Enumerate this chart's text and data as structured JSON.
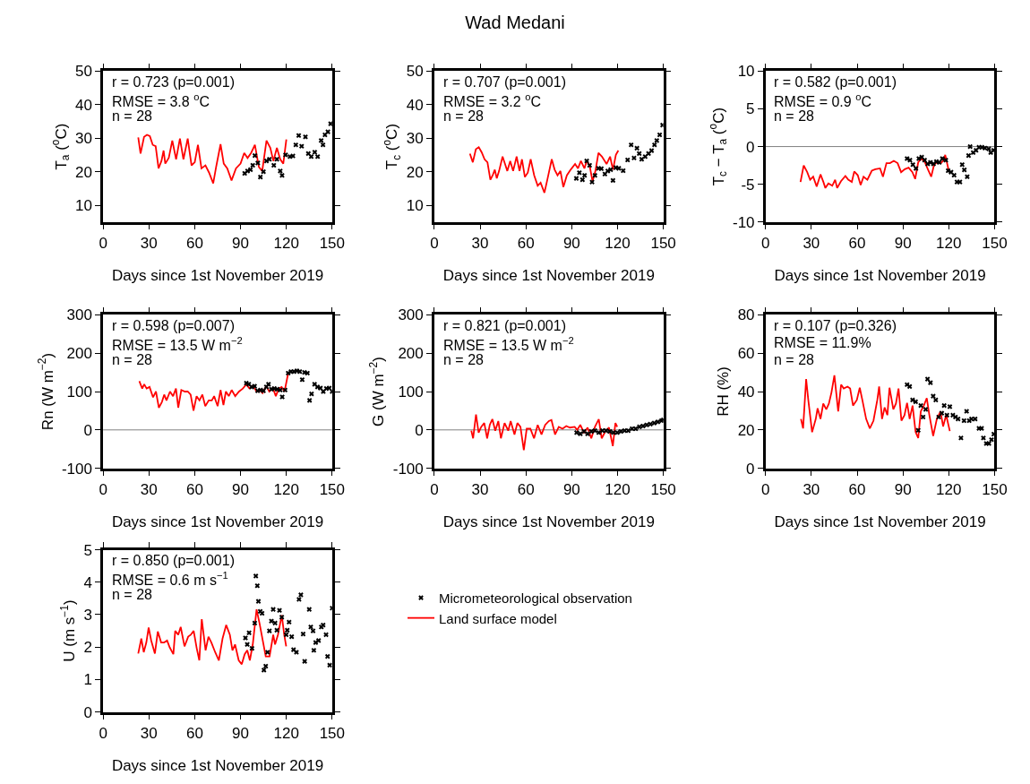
{
  "chart_data": [
    {
      "type": "line",
      "xlabel": "Days since 1st November 2019",
      "ylabel": "T$_{a}$ ($^{o}$C)",
      "xlim": [
        0,
        150
      ],
      "xticks": [
        0,
        30,
        60,
        90,
        120,
        150
      ],
      "ylim": [
        5,
        50
      ],
      "yticks": [
        10,
        20,
        30,
        40,
        50
      ],
      "grid": false,
      "annotations": [
        "r = 0.723 (p=0.001)",
        "RMSE = 3.8 $^{o}$C",
        "n = 28"
      ],
      "series": [
        {
          "type": "scatter",
          "marker": "cross",
          "color": "#000000",
          "x": [
            92.7,
            94.6,
            96.5,
            98,
            99.4,
            101.3,
            103,
            105,
            107,
            108.9,
            111.8,
            113.8,
            116,
            117.2,
            119.5,
            122.4,
            124.3,
            126.2,
            128.1,
            130,
            132.5,
            134.4,
            136.3,
            138.6,
            140.5,
            142.8,
            144,
            145.3,
            147.2,
            149
          ],
          "values": [
            19.5,
            20.2,
            20.6,
            21.9,
            24.8,
            22.6,
            18.4,
            20,
            23.2,
            23.7,
            21.9,
            23.7,
            20.2,
            18.9,
            25,
            24.5,
            24.7,
            28,
            30.8,
            27.6,
            30.4,
            25.4,
            24.5,
            25.8,
            24.5,
            29.3,
            28,
            31,
            31.9,
            34.3
          ]
        },
        {
          "type": "line",
          "color": "#ff0000",
          "x": [
            23,
            24.5,
            26.8,
            28.7,
            30.6,
            32.5,
            34.4,
            36.3,
            38.2,
            39.6,
            40.7,
            43,
            45.3,
            47.8,
            50.3,
            52.6,
            55.4,
            57.9,
            60,
            62.1,
            64.4,
            67,
            69.4,
            72.1,
            74,
            76.9,
            79,
            81.3,
            84.1,
            87,
            90,
            92.4,
            94.6,
            96.9,
            99.4,
            102,
            104.2,
            107,
            109.5,
            111.5,
            113.8,
            116,
            118,
            120
          ],
          "values": [
            30.2,
            25.4,
            30.4,
            31,
            30.6,
            28,
            27.6,
            21,
            23.2,
            26.3,
            22.4,
            24.1,
            29.3,
            23.7,
            29.9,
            23.7,
            29.9,
            21.9,
            22.8,
            28,
            21,
            21.9,
            19.7,
            16.5,
            21.4,
            28.2,
            22.4,
            21,
            17.4,
            21,
            22.4,
            25.6,
            24.1,
            25.6,
            28,
            21.4,
            20.2,
            29.3,
            27.1,
            23.2,
            27.1,
            23.7,
            22.4,
            29.6
          ]
        }
      ]
    },
    {
      "type": "line",
      "title": "Wad Medani",
      "xlabel": "Days since 1st November 2019",
      "ylabel": "T$_{c}$ ($^{o}$C)",
      "xlim": [
        0,
        150
      ],
      "xticks": [
        0,
        30,
        60,
        90,
        120,
        150
      ],
      "ylim": [
        5,
        50
      ],
      "yticks": [
        10,
        20,
        30,
        40,
        50
      ],
      "grid": false,
      "annotations": [
        "r = 0.707 (p=0.001)",
        "RMSE = 3.2 $^{o}$C",
        "n = 28"
      ],
      "series": [
        {
          "type": "scatter",
          "marker": "cross",
          "color": "#000000",
          "x": [
            93,
            95,
            97,
            98.4,
            99.8,
            101.7,
            103.3,
            105.2,
            107.5,
            109.4,
            111.7,
            113.6,
            115.5,
            117,
            118.9,
            120.8,
            123.7,
            126.6,
            128.9,
            130.8,
            132.7,
            134.2,
            135.8,
            138.1,
            140.3,
            142.3,
            144.2,
            145.7,
            147.6,
            149.5
          ],
          "values": [
            18,
            19.7,
            17.6,
            18.9,
            23.2,
            21.9,
            16.9,
            18.9,
            21,
            20.9,
            19.3,
            20.2,
            20.6,
            17.4,
            21.2,
            21,
            20.3,
            23.5,
            28,
            24.1,
            27,
            25.4,
            23.7,
            24.5,
            25.4,
            26.3,
            28,
            29.3,
            31,
            33.9
          ]
        },
        {
          "type": "line",
          "color": "#ff0000",
          "x": [
            23.3,
            25.2,
            27.2,
            29.1,
            31,
            32.9,
            34.8,
            36.7,
            38.2,
            39.6,
            40.9,
            42.4,
            44.7,
            46.3,
            47.8,
            49.7,
            51.6,
            53.9,
            55.8,
            57.4,
            59.3,
            61.2,
            63.1,
            65.4,
            67.7,
            69.6,
            72.1,
            74,
            76.9,
            78.8,
            80.7,
            82.6,
            84.5,
            86.8,
            89.3,
            92.2,
            94.1,
            96,
            98.3,
            99.8,
            101.7,
            103.6,
            105.5,
            107.5,
            109.8,
            112.8,
            115.1,
            117,
            118.9,
            120.5
          ],
          "values": [
            25.4,
            22.8,
            26.7,
            27.3,
            25.8,
            23.7,
            22.8,
            17.6,
            18.9,
            20.6,
            18,
            20.2,
            24.5,
            22.3,
            20.2,
            23.2,
            20.2,
            24.5,
            20.2,
            23.7,
            18.4,
            19.7,
            23.7,
            18.9,
            15.8,
            16.7,
            13.7,
            17.6,
            23.7,
            20.6,
            18.9,
            20.2,
            15.4,
            18.9,
            20.6,
            22.3,
            21,
            23.2,
            21,
            23.2,
            21.9,
            17.1,
            20.2,
            25.6,
            24.5,
            22.3,
            24.5,
            20.6,
            25,
            26.3
          ]
        }
      ]
    },
    {
      "type": "line",
      "xlabel": "Days since 1st November 2019",
      "ylabel": "T$_{c}$ − T$_{a}$ ($^{o}$C)",
      "xlim": [
        0,
        150
      ],
      "xticks": [
        0,
        30,
        60,
        90,
        120,
        150
      ],
      "ylim": [
        -10,
        10
      ],
      "yticks": [
        -10,
        -5,
        0,
        5,
        10
      ],
      "grid": false,
      "annotations": [
        "r = 0.582 (p=0.001)",
        "RMSE = 0.9 $^{o}$C",
        "n = 28"
      ],
      "ref_lines": [
        {
          "axis": "y",
          "value": 0,
          "color": "#808080"
        }
      ],
      "series": [
        {
          "type": "scatter",
          "marker": "cross",
          "color": "#000000",
          "x": [
            92.7,
            94.6,
            96.5,
            98.5,
            100.4,
            102.3,
            104.2,
            106.2,
            108,
            110,
            111.9,
            113.8,
            115.8,
            118.1,
            119.6,
            121.5,
            123.5,
            125.4,
            127.3,
            128.8,
            130.2,
            132.1,
            133,
            134,
            136,
            137.9,
            139.8,
            141.7,
            143.7,
            146.2,
            147.5,
            149.4
          ],
          "values": [
            -1.6,
            -1.8,
            -2.4,
            -2.9,
            -1.6,
            -1.4,
            -1.8,
            -2.3,
            -2.1,
            -2.3,
            -2,
            -2.1,
            -1.6,
            -1.8,
            -3.2,
            -3.4,
            -3.8,
            -4.7,
            -4.7,
            -2.4,
            -3.1,
            -4,
            -1.2,
            0,
            -0.8,
            -0.5,
            -0.1,
            -0.1,
            -0.2,
            -0.3,
            -0.8,
            -0.5
          ]
        },
        {
          "type": "line",
          "color": "#ff0000",
          "x": [
            22.9,
            25,
            27.3,
            29.2,
            31.2,
            33.5,
            36,
            37.9,
            39.2,
            41.2,
            43.7,
            45.6,
            46.9,
            49.4,
            52.3,
            54.2,
            56.5,
            58.1,
            60.4,
            62.3,
            64.2,
            66.7,
            69.6,
            71.9,
            75,
            76.9,
            79.2,
            81.5,
            84,
            86.5,
            88.8,
            91.2,
            93.7,
            96.2,
            98,
            100,
            101.9,
            104.2,
            106.5,
            108.5,
            110.4,
            112.9,
            114.8,
            116.7,
            117.7,
            120
          ],
          "values": [
            -4.7,
            -2.5,
            -3.4,
            -4.4,
            -4,
            -5.3,
            -3.7,
            -4.7,
            -5.5,
            -4.9,
            -5.2,
            -4.4,
            -5.5,
            -4.6,
            -3.9,
            -4.4,
            -4.7,
            -3.3,
            -3.8,
            -5.1,
            -4,
            -4.4,
            -3.2,
            -3,
            -2.9,
            -4,
            -2.2,
            -2.2,
            -1.9,
            -2.2,
            -3.4,
            -3,
            -2.8,
            -3.4,
            -4.3,
            -2.1,
            -1.6,
            -2,
            -3.1,
            -4,
            -2.4,
            -2,
            -2.2,
            -1.8,
            -1.1,
            -3.2
          ]
        }
      ]
    },
    {
      "type": "line",
      "xlabel": "Days since 1st November 2019",
      "ylabel": "Rn (W m$^{−2}$)",
      "xlim": [
        0,
        150
      ],
      "xticks": [
        0,
        30,
        60,
        90,
        120,
        150
      ],
      "ylim": [
        -100,
        300
      ],
      "yticks": [
        -100,
        0,
        100,
        200,
        300
      ],
      "grid": false,
      "annotations": [
        "r = 0.598 (p=0.007)",
        "RMSE = 13.5 W m$^{−2}$",
        "n = 28"
      ],
      "ref_lines": [
        {
          "axis": "y",
          "value": 0,
          "color": "#808080"
        }
      ],
      "series": [
        {
          "type": "scatter",
          "marker": "cross",
          "color": "#000000",
          "x": [
            93.8,
            95.4,
            97.3,
            99.2,
            101.2,
            103.1,
            105,
            106.9,
            108.3,
            110.2,
            112.1,
            114,
            116,
            117.3,
            119.2,
            121.2,
            123,
            125,
            126.9,
            128.8,
            130.4,
            131.9,
            133.8,
            135.2,
            136.5,
            138.5,
            140.4,
            142.3,
            144.2,
            146.2,
            148.1,
            150
          ],
          "values": [
            122,
            119,
            112,
            114,
            102,
            104,
            102,
            112,
            119,
            106,
            108,
            106,
            104,
            86,
            104,
            148,
            152,
            152,
            154,
            152,
            131,
            150,
            148,
            77,
            94,
            119,
            112,
            109,
            100,
            108,
            109,
            100
          ]
        },
        {
          "type": "line",
          "color": "#ff0000",
          "x": [
            23.7,
            25.6,
            26.9,
            28.5,
            30.4,
            32.7,
            34.6,
            36.5,
            38.5,
            40,
            41.5,
            43.8,
            45.8,
            47.7,
            49.2,
            51.2,
            53.5,
            55.4,
            57.3,
            59.2,
            61.2,
            63.1,
            65,
            66.9,
            69.2,
            71.2,
            72.7,
            75,
            76.9,
            78.8,
            80.4,
            82.3,
            84.2,
            86.5,
            89,
            91.5,
            93.8,
            95.8,
            98,
            100.6,
            102.5,
            104.4,
            106.9,
            108.8,
            111.2,
            113.1,
            115,
            116.9,
            118.8,
            121.2
          ],
          "values": [
            127,
            108,
            119,
            108,
            112,
            85,
            100,
            58,
            73,
            92,
            77,
            100,
            88,
            108,
            58,
            104,
            100,
            100,
            92,
            50,
            88,
            77,
            92,
            62,
            77,
            77,
            88,
            62,
            104,
            65,
            100,
            88,
            104,
            88,
            100,
            108,
            119,
            108,
            115,
            100,
            104,
            96,
            115,
            100,
            109,
            88,
            108,
            112,
            100,
            148
          ]
        }
      ]
    },
    {
      "type": "line",
      "xlabel": "Days since 1st November 2019",
      "ylabel": "G (W m$^{−2}$)",
      "xlim": [
        0,
        150
      ],
      "xticks": [
        0,
        30,
        60,
        90,
        120,
        150
      ],
      "ylim": [
        -100,
        300
      ],
      "yticks": [
        -100,
        0,
        100,
        200,
        300
      ],
      "grid": false,
      "annotations": [
        "r = 0.821 (p=0.001)",
        "RMSE = 13.5 W m$^{−2}$",
        "n = 28"
      ],
      "ref_lines": [
        {
          "axis": "y",
          "value": 0,
          "color": "#808080"
        }
      ],
      "series": [
        {
          "type": "scatter",
          "marker": "cross",
          "color": "#000000",
          "x": [
            93.2,
            95.6,
            98,
            100.4,
            102.8,
            105.2,
            107.7,
            110.1,
            112.5,
            114.9,
            117.3,
            119.8,
            122.2,
            124.6,
            127,
            129.5,
            131.9,
            134.3,
            136.7,
            139.1,
            141.5,
            144,
            146.4,
            148.8,
            150
          ],
          "values": [
            -7,
            -10,
            -4,
            -10,
            -4,
            -2,
            -7,
            -2,
            -2,
            -4,
            -7,
            -7,
            -4,
            -2,
            -2,
            3,
            3,
            8,
            10,
            13,
            15,
            18,
            21,
            24,
            26
          ]
        },
        {
          "type": "line",
          "color": "#ff0000",
          "x": [
            24.2,
            25.4,
            27.3,
            29,
            30.7,
            32.7,
            34.6,
            36.3,
            38,
            39.9,
            41.9,
            43.6,
            46,
            48.4,
            50,
            52.5,
            54.4,
            56.4,
            58.6,
            60.5,
            62.9,
            65.3,
            67.7,
            70.2,
            72.6,
            75,
            76.7,
            79.1,
            81.5,
            84,
            86.4,
            88.8,
            91.9,
            93.6,
            95.6,
            98,
            100.4,
            102.8,
            105.2,
            107.7,
            109.6,
            112,
            114.4,
            116.9,
            118.6,
            119.8
          ],
          "values": [
            -2,
            -22,
            40,
            -7,
            8,
            18,
            -22,
            13,
            28,
            -2,
            23,
            -22,
            18,
            -2,
            23,
            -12,
            18,
            8,
            -53,
            3,
            3,
            -22,
            13,
            -12,
            13,
            23,
            26,
            -12,
            8,
            3,
            10,
            6,
            8,
            0,
            13,
            -7,
            6,
            -22,
            8,
            28,
            -22,
            -4,
            6,
            -42,
            18,
            8
          ]
        }
      ]
    },
    {
      "type": "line",
      "xlabel": "Days since 1st November 2019",
      "ylabel": "RH (%)",
      "xlim": [
        0,
        150
      ],
      "xticks": [
        0,
        30,
        60,
        90,
        120,
        150
      ],
      "ylim": [
        0,
        80
      ],
      "yticks": [
        0,
        20,
        40,
        60,
        80
      ],
      "grid": false,
      "annotations": [
        "r = 0.107 (p=0.326)",
        "RMSE = 11.9%",
        "n = 28"
      ],
      "series": [
        {
          "type": "scatter",
          "marker": "cross",
          "color": "#000000",
          "x": [
            92.7,
            94.4,
            96.3,
            98.3,
            100,
            101.7,
            103.2,
            104.9,
            106.1,
            108,
            109.8,
            111.5,
            113.4,
            115.4,
            117,
            118.8,
            120.7,
            122.7,
            124.4,
            126.1,
            128,
            130,
            131.7,
            133.4,
            134.9,
            137.3,
            139.8,
            141.5,
            142.7,
            144.6,
            146.3,
            148,
            149.5
          ],
          "values": [
            43.6,
            42.6,
            35.6,
            34.7,
            19.8,
            32.7,
            26.7,
            30.7,
            46.5,
            44.6,
            37.6,
            35.6,
            26.7,
            28.7,
            32.7,
            27.7,
            32.1,
            27.7,
            26.7,
            25.7,
            15.8,
            24.8,
            29.7,
            24.8,
            25.7,
            25.7,
            20.8,
            20.8,
            15.8,
            12.9,
            12.9,
            14.9,
            17.8
          ]
        },
        {
          "type": "line",
          "color": "#ff0000",
          "x": [
            23.2,
            24.6,
            26.6,
            28,
            30.5,
            32.9,
            34.1,
            36,
            37.8,
            39.8,
            41.5,
            43.2,
            45.1,
            47.6,
            49.5,
            51.2,
            53.7,
            55.4,
            57.3,
            59.8,
            61.7,
            63.4,
            65.9,
            68.3,
            70.7,
            73.2,
            74.4,
            76.3,
            78,
            79.8,
            81.2,
            83.7,
            85.4,
            87.1,
            89,
            91,
            92.7,
            94.4,
            96.3,
            98.3,
            100,
            101.7,
            103.7,
            105.6,
            107.3,
            109.8,
            112.2,
            114.6,
            116.3,
            118.3,
            120.7
          ],
          "values": [
            25.7,
            20.8,
            46.5,
            35.6,
            18.8,
            25.7,
            31.3,
            25.7,
            33.7,
            30.7,
            33.7,
            39.6,
            48.5,
            29.7,
            43.6,
            41.6,
            42.6,
            41.6,
            32.7,
            35.6,
            42,
            35.6,
            25.7,
            20.8,
            24.8,
            35.6,
            42.6,
            25.7,
            31.7,
            27.7,
            42,
            30.7,
            33.7,
            41.6,
            24.8,
            27.7,
            34.1,
            25.7,
            32.7,
            18.8,
            15.8,
            29.7,
            32.7,
            36.6,
            27.7,
            16.8,
            25.7,
            29.7,
            21.8,
            27.7,
            19.4
          ]
        }
      ]
    },
    {
      "type": "line",
      "xlabel": "Days since 1st November 2019",
      "ylabel": "U (m s$^{−1}$)",
      "xlim": [
        0,
        150
      ],
      "xticks": [
        0,
        30,
        60,
        90,
        120,
        150
      ],
      "ylim": [
        0,
        5
      ],
      "yticks": [
        0,
        1,
        2,
        3,
        4,
        5
      ],
      "grid": false,
      "legend": "right",
      "annotations": [
        "r = 0.850 (p=0.001)",
        "RMSE = 0.6 m s$^{−1}$",
        "n = 28"
      ],
      "series": [
        {
          "name": "Micrometeorological observation",
          "type": "scatter",
          "marker": "cross",
          "color": "#000000",
          "x": [
            93.2,
            94.4,
            95.6,
            97.5,
            99.3,
            100,
            101,
            101.7,
            102.9,
            104.1,
            105.3,
            106.5,
            107.7,
            108.9,
            110.2,
            111.4,
            112.6,
            113.8,
            115.5,
            117,
            119.9,
            120.6,
            121.8,
            123.5,
            124.7,
            126.6,
            128.3,
            129.5,
            131,
            132,
            135,
            136,
            137.5,
            138,
            139.2,
            141.1,
            142.9,
            144.1,
            146,
            147,
            148.4,
            150
          ],
          "values": [
            2.28,
            2.08,
            2.44,
            1.96,
            2.74,
            4.19,
            3.89,
            3.41,
            3.1,
            3.04,
            1.29,
            1.41,
            1.84,
            2.5,
            2.8,
            3.16,
            2.74,
            2.52,
            3.13,
            2.92,
            2.38,
            2.52,
            2.77,
            2.32,
            1.92,
            1.84,
            3.47,
            3.61,
            2.4,
            1.56,
            3.16,
            2.62,
            2.5,
            1.9,
            2.14,
            2.2,
            2.62,
            2.68,
            2.38,
            1.71,
            1.44,
            3.2
          ]
        },
        {
          "name": "Land surface model",
          "type": "line",
          "color": "#ff0000",
          "x": [
            23,
            25,
            26.6,
            28.3,
            29.8,
            31.5,
            33.9,
            35.8,
            38,
            39.9,
            41.9,
            43.6,
            46,
            47.2,
            49.2,
            50.8,
            53.3,
            55.7,
            57.4,
            59.3,
            61.3,
            63,
            64.6,
            67.1,
            69,
            70.9,
            73.4,
            75.8,
            78.2,
            80.6,
            83,
            84.7,
            86.4,
            88.8,
            90.8,
            92.7,
            94.4,
            96.1,
            98,
            100.5,
            102.4,
            104.8,
            106.5,
            109,
            111.4,
            112.6,
            114.5,
            117,
            118.6,
            119.9
          ],
          "values": [
            1.8,
            2.26,
            1.84,
            2.14,
            2.6,
            2.2,
            1.8,
            2.48,
            2.14,
            2.14,
            2.2,
            1.99,
            1.78,
            2.5,
            2.38,
            2.62,
            2.02,
            2.32,
            2.38,
            2.5,
            1.96,
            1.59,
            2.86,
            1.9,
            2.32,
            2.14,
            1.84,
            1.59,
            2.26,
            2.68,
            2.38,
            1.9,
            2.08,
            1.59,
            1.47,
            1.78,
            1.9,
            1.59,
            2.08,
            3.16,
            2.74,
            2.14,
            1.71,
            1.71,
            2.38,
            2.08,
            2.38,
            2.98,
            2.38,
            2.02
          ]
        }
      ]
    }
  ]
}
